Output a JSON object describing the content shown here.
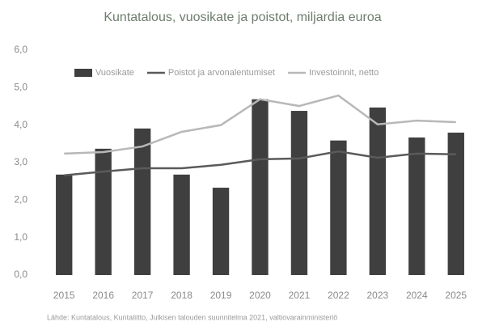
{
  "chart_data": {
    "type": "bar",
    "title": "Kuntatalous, vuosikate ja poistot, miljardia euroa",
    "source": "Lähde: Kuntatalous, Kuntaliitto, Julkisen talouden suunnitelma 2021, valtiovarainministeriö",
    "categories": [
      "2015",
      "2016",
      "2017",
      "2018",
      "2019",
      "2020",
      "2021",
      "2022",
      "2023",
      "2024",
      "2025"
    ],
    "series": [
      {
        "name": "Vuosikate",
        "color": "#3f3f3f",
        "kind": "bar",
        "values": [
          2.68,
          3.37,
          3.91,
          2.68,
          2.33,
          4.69,
          4.38,
          3.59,
          4.47,
          3.67,
          3.8
        ]
      },
      {
        "name": "Poistot ja arvonalentumiset",
        "color": "#5a5a5a",
        "kind": "line",
        "values": [
          2.66,
          2.76,
          2.85,
          2.85,
          2.94,
          3.09,
          3.11,
          3.3,
          3.13,
          3.24,
          3.22
        ]
      },
      {
        "name": "Investoinnit, netto",
        "color": "#b8b8b8",
        "kind": "line",
        "values": [
          3.24,
          3.28,
          3.43,
          3.82,
          4.0,
          4.69,
          4.51,
          4.79,
          4.02,
          4.12,
          4.08
        ]
      }
    ],
    "ylim": [
      0,
      6
    ],
    "yticks": [
      {
        "value": 0,
        "label": "0,0"
      },
      {
        "value": 1,
        "label": "1,0"
      },
      {
        "value": 2,
        "label": "2,0"
      },
      {
        "value": 3,
        "label": "3,0"
      },
      {
        "value": 4,
        "label": "4,0"
      },
      {
        "value": 5,
        "label": "5,0"
      },
      {
        "value": 6,
        "label": "6,0"
      }
    ],
    "grid": false,
    "legend": "top"
  }
}
